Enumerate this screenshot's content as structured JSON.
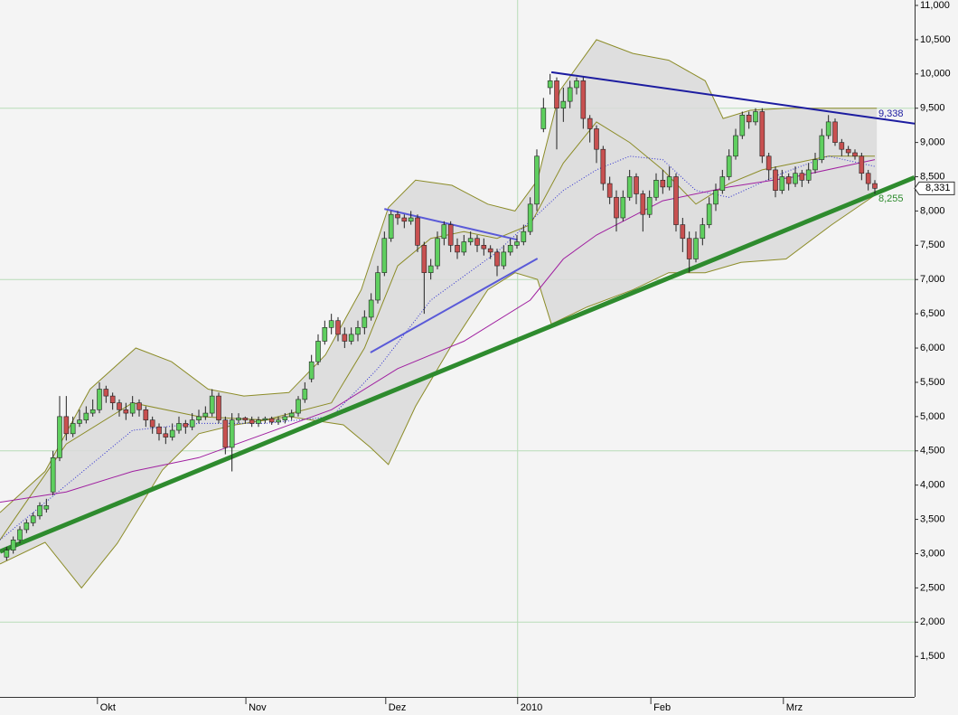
{
  "chart_data": {
    "type": "candlestick",
    "xlim": [
      0,
      138
    ],
    "xticks": [
      {
        "value": 14.7,
        "label": "Okt"
      },
      {
        "value": 37.1,
        "label": "Nov"
      },
      {
        "value": 58.2,
        "label": "Dez"
      },
      {
        "value": 78.1,
        "label": "2010"
      },
      {
        "value": 98.2,
        "label": "Feb"
      },
      {
        "value": 118.2,
        "label": "Mrz"
      }
    ],
    "x_grid_tick": 3,
    "ylim": [
      909,
      11079
    ],
    "yticks": [
      {
        "value": 1500,
        "label": "1,500"
      },
      {
        "value": 2000,
        "label": "2,000"
      },
      {
        "value": 2500,
        "label": "2,500"
      },
      {
        "value": 3000,
        "label": "3,000"
      },
      {
        "value": 3500,
        "label": "3,500"
      },
      {
        "value": 4000,
        "label": "4,000"
      },
      {
        "value": 4500,
        "label": "4,500"
      },
      {
        "value": 5000,
        "label": "5,000"
      },
      {
        "value": 5500,
        "label": "5,500"
      },
      {
        "value": 6000,
        "label": "6,000"
      },
      {
        "value": 6500,
        "label": "6,500"
      },
      {
        "value": 7000,
        "label": "7,000"
      },
      {
        "value": 7500,
        "label": "7,500"
      },
      {
        "value": 8000,
        "label": "8,000"
      },
      {
        "value": 8500,
        "label": "8,500"
      },
      {
        "value": 9000,
        "label": "9,000"
      },
      {
        "value": 9500,
        "label": "9,500"
      },
      {
        "value": 10000,
        "label": "10,000"
      },
      {
        "value": 10500,
        "label": "10,500"
      },
      {
        "value": 11000,
        "label": "11,000"
      }
    ],
    "grid_step": 5,
    "up_color": "#5fcf5f",
    "down_color": "#c85050",
    "candles": {
      "x": [
        1,
        2,
        3,
        4,
        5,
        6,
        7,
        8,
        9,
        10,
        11,
        12,
        13,
        14,
        15,
        16,
        17,
        18,
        19,
        20,
        21,
        22,
        23,
        24,
        25,
        26,
        27,
        28,
        29,
        30,
        31,
        32,
        33,
        34,
        35,
        36,
        37,
        38,
        39,
        40,
        41,
        42,
        43,
        44,
        45,
        46,
        47,
        48,
        49,
        50,
        51,
        52,
        53,
        54,
        55,
        56,
        57,
        58,
        59,
        60,
        61,
        62,
        63,
        64,
        65,
        66,
        67,
        68,
        69,
        70,
        71,
        72,
        73,
        74,
        75,
        76,
        77,
        78,
        79,
        80,
        81,
        82,
        83,
        84,
        85,
        86,
        87,
        88,
        89,
        90,
        91,
        92,
        93,
        94,
        95,
        96,
        97,
        98,
        99,
        100,
        101,
        102,
        103,
        104,
        105,
        106,
        107,
        108,
        109,
        110,
        111,
        112,
        113,
        114,
        115,
        116,
        117,
        118,
        119,
        120,
        121,
        122,
        123,
        124,
        125,
        126,
        127,
        128,
        129,
        130,
        131,
        132
      ],
      "open": [
        2950,
        3050,
        3200,
        3350,
        3450,
        3550,
        3650,
        3900,
        4400,
        5000,
        4750,
        4900,
        4950,
        5050,
        5100,
        5400,
        5300,
        5200,
        5100,
        5050,
        5200,
        5100,
        4950,
        4850,
        4750,
        4700,
        4800,
        4900,
        4850,
        4950,
        5000,
        5050,
        5300,
        4950,
        4550,
        4950,
        4980,
        4950,
        4900,
        4950,
        4970,
        4920,
        4950,
        5000,
        5050,
        5250,
        5550,
        5800,
        6100,
        6300,
        6400,
        6200,
        6100,
        6200,
        6300,
        6450,
        6700,
        7100,
        7600,
        7950,
        7900,
        7850,
        7900,
        7500,
        7100,
        7200,
        7600,
        7800,
        7500,
        7400,
        7550,
        7600,
        7500,
        7450,
        7400,
        7200,
        7400,
        7500,
        7550,
        7700,
        8100,
        9200,
        9800,
        9900,
        9500,
        9600,
        9800,
        9900,
        9350,
        9200,
        8900,
        8400,
        8200,
        7900,
        8200,
        8500,
        8250,
        7950,
        8200,
        8450,
        8350,
        8500,
        7800,
        7600,
        7300,
        7600,
        7800,
        8100,
        8300,
        8500,
        8800,
        9100,
        9400,
        9300,
        9450,
        8800,
        8600,
        8300,
        8500,
        8400,
        8550,
        8450,
        8600,
        8750,
        9100,
        9300,
        9000,
        8900,
        8850,
        8800,
        8550,
        8400
      ],
      "high": [
        3100,
        3250,
        3400,
        3500,
        3600,
        3750,
        3800,
        4500,
        5300,
        5300,
        5000,
        5100,
        5150,
        5250,
        5500,
        5450,
        5350,
        5250,
        5200,
        5300,
        5250,
        5150,
        5000,
        4900,
        4850,
        4900,
        5000,
        4950,
        5050,
        5100,
        5150,
        5400,
        5350,
        5000,
        5050,
        5050,
        5000,
        5000,
        5000,
        5000,
        5000,
        5000,
        5050,
        5100,
        5300,
        5500,
        5900,
        6200,
        6400,
        6500,
        6450,
        6300,
        6300,
        6400,
        6550,
        6800,
        7200,
        7700,
        8000,
        8000,
        7950,
        8000,
        7950,
        7550,
        7300,
        7700,
        7850,
        7850,
        7600,
        7650,
        7700,
        7650,
        7600,
        7500,
        7450,
        7500,
        7600,
        7650,
        7800,
        8200,
        8900,
        9650,
        10000,
        9950,
        9800,
        9900,
        9950,
        9950,
        9400,
        9250,
        8950,
        8500,
        8300,
        8300,
        8600,
        8550,
        8300,
        8300,
        8550,
        8600,
        8650,
        8550,
        7900,
        7700,
        7700,
        7900,
        8200,
        8400,
        8600,
        8900,
        9200,
        9450,
        9450,
        9500,
        9500,
        8850,
        8650,
        8600,
        8550,
        8650,
        8600,
        8700,
        8850,
        9200,
        9400,
        9350,
        9050,
        8950,
        8900,
        8850,
        8600,
        8450
      ],
      "low": [
        2900,
        3000,
        3150,
        3300,
        3400,
        3500,
        3600,
        3850,
        4350,
        4650,
        4700,
        4850,
        4900,
        5000,
        5050,
        5200,
        5100,
        5000,
        4950,
        5000,
        5000,
        4850,
        4750,
        4650,
        4600,
        4650,
        4750,
        4750,
        4800,
        4900,
        4950,
        5000,
        4900,
        4450,
        4200,
        4900,
        4900,
        4850,
        4850,
        4900,
        4880,
        4880,
        4900,
        4950,
        5000,
        5200,
        5500,
        5750,
        6050,
        6200,
        6100,
        6000,
        6050,
        6100,
        6200,
        6400,
        6650,
        7050,
        7550,
        7800,
        7750,
        7800,
        7400,
        6500,
        7000,
        7150,
        7500,
        7400,
        7300,
        7350,
        7500,
        7400,
        7350,
        7300,
        7050,
        7150,
        7350,
        7450,
        7500,
        7650,
        8000,
        9150,
        9700,
        8900,
        9300,
        9500,
        9700,
        9200,
        9000,
        8700,
        8300,
        8100,
        7700,
        7850,
        8150,
        8100,
        7700,
        7900,
        8150,
        8250,
        8300,
        7700,
        7400,
        7100,
        7250,
        7500,
        7750,
        8000,
        8250,
        8450,
        8750,
        9050,
        9200,
        9250,
        8700,
        8450,
        8200,
        8250,
        8300,
        8350,
        8350,
        8400,
        8550,
        8700,
        9050,
        8950,
        8800,
        8800,
        8750,
        8450,
        8300,
        8250
      ],
      "close": [
        3050,
        3200,
        3350,
        3450,
        3550,
        3700,
        3700,
        4400,
        5000,
        4750,
        4900,
        4950,
        5050,
        5100,
        5400,
        5300,
        5200,
        5100,
        5050,
        5200,
        5100,
        4950,
        4850,
        4750,
        4700,
        4800,
        4900,
        4850,
        4950,
        5000,
        5050,
        5300,
        4950,
        4550,
        4950,
        4980,
        4950,
        4900,
        4950,
        4970,
        4920,
        4950,
        5000,
        5050,
        5250,
        5400,
        5800,
        6100,
        6300,
        6400,
        6200,
        6100,
        6200,
        6300,
        6450,
        6700,
        7100,
        7600,
        7950,
        7900,
        7850,
        7900,
        7500,
        7100,
        7200,
        7600,
        7800,
        7500,
        7400,
        7550,
        7600,
        7500,
        7450,
        7400,
        7200,
        7400,
        7500,
        7550,
        7700,
        8100,
        8800,
        9500,
        9900,
        9500,
        9600,
        9800,
        9900,
        9350,
        9200,
        8900,
        8400,
        8200,
        7900,
        8200,
        8500,
        8250,
        7950,
        8200,
        8450,
        8350,
        8500,
        7800,
        7600,
        7300,
        7600,
        7800,
        8100,
        8300,
        8500,
        8800,
        9100,
        9400,
        9300,
        9450,
        8800,
        8600,
        8300,
        8500,
        8400,
        8550,
        8450,
        8600,
        8750,
        9100,
        9300,
        9000,
        8900,
        8850,
        8800,
        8550,
        8400,
        8331
      ]
    },
    "bands": {
      "color": "#8c8c28",
      "fill": "#d9d9d9",
      "upper": {
        "x": [
          0,
          6.8,
          13.6,
          20.5,
          25.9,
          31.4,
          36.8,
          43.6,
          49.1,
          54.5,
          58.6,
          62.7,
          68.2,
          73.6,
          77.7,
          81.1,
          84.5,
          90,
          95.5,
          100.9,
          106.4,
          109.1,
          113.2,
          118.6,
          125.5,
          132.3
        ],
        "values": [
          3600,
          4200,
          5400,
          6000,
          5800,
          5400,
          5300,
          5350,
          5900,
          6850,
          8050,
          8450,
          8375,
          8100,
          8000,
          8450,
          9760,
          10500,
          10300,
          10200,
          9900,
          9350,
          9470,
          9500,
          9500,
          9500
        ]
      },
      "lower": {
        "x": [
          0,
          6.8,
          12.3,
          17.7,
          24.5,
          30,
          35.5,
          43.6,
          51.8,
          55.9,
          58.6,
          62.7,
          68.2,
          73.6,
          77.7,
          81.1,
          83.2,
          88.6,
          95.5,
          100.9,
          106.4,
          111.8,
          118.6,
          125.5,
          132.3
        ],
        "values": [
          2850,
          3165,
          2500,
          3150,
          4220,
          4750,
          4880,
          5000,
          4880,
          4550,
          4300,
          5150,
          6050,
          6850,
          7100,
          7000,
          6350,
          6600,
          6850,
          7100,
          7100,
          7250,
          7300,
          7800,
          8250
        ]
      },
      "middle": {
        "x": [
          0,
          10,
          20,
          30,
          40,
          50,
          55,
          60,
          65,
          70,
          75,
          80,
          85,
          90,
          95,
          100,
          105,
          110,
          115,
          120,
          125,
          132
        ],
        "values": [
          3200,
          4600,
          5200,
          5000,
          4950,
          5200,
          6000,
          7200,
          7600,
          7700,
          7600,
          7800,
          8700,
          9300,
          9000,
          8600,
          8100,
          8400,
          8600,
          8700,
          8800,
          8800
        ]
      }
    },
    "averages": [
      {
        "color": "#3030d0",
        "dash": true,
        "x": [
          0,
          10,
          20,
          30,
          40,
          50,
          57,
          65,
          75,
          85,
          90,
          95,
          100,
          105,
          110,
          118,
          125,
          132
        ],
        "values": [
          3200,
          4000,
          4800,
          4900,
          4900,
          5000,
          5700,
          6700,
          7400,
          8300,
          8600,
          8800,
          8750,
          8300,
          8200,
          8550,
          8800,
          8650
        ]
      },
      {
        "color": "#a020a0",
        "dash": false,
        "x": [
          0,
          10,
          20,
          30,
          40,
          50,
          60,
          70,
          80,
          85,
          90,
          100,
          110,
          120,
          132
        ],
        "values": [
          3750,
          3900,
          4200,
          4400,
          4750,
          5100,
          5700,
          6100,
          6700,
          7300,
          7650,
          8150,
          8350,
          8500,
          8750
        ]
      }
    ],
    "trendlines": [
      {
        "color": "#2e8b2e",
        "width": 5,
        "x": [
          0,
          138
        ],
        "values": [
          3030,
          8490
        ]
      },
      {
        "color": "#1c1ca0",
        "width": 2,
        "x": [
          83.2,
          138
        ],
        "values": [
          10025,
          9275
        ]
      },
      {
        "color": "#5a5ad8",
        "width": 2,
        "x": [
          58,
          78.1
        ],
        "values": [
          8030,
          7580
        ]
      },
      {
        "color": "#5a5ad8",
        "width": 2,
        "x": [
          55.9,
          81.1
        ],
        "values": [
          5935,
          7307
        ]
      }
    ],
    "annotations": [
      {
        "value": 9338,
        "label": "9,338",
        "color": "#1c1ca0"
      },
      {
        "value": 8255,
        "label": "8,255",
        "color": "#2e8b2e"
      }
    ],
    "last_price": {
      "value": 8331,
      "label": "8,331"
    }
  }
}
